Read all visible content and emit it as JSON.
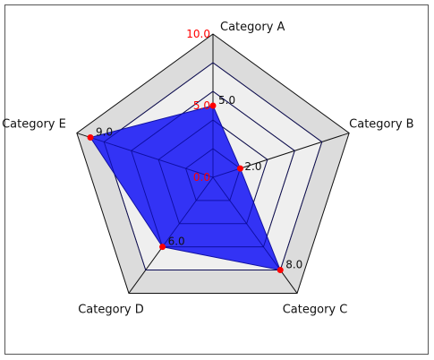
{
  "chart_data": {
    "type": "radar",
    "categories": [
      "Category A",
      "Category B",
      "Category C",
      "Category D",
      "Category E"
    ],
    "series": [
      {
        "values": [
          5.0,
          2.0,
          8.0,
          6.0,
          9.0
        ]
      }
    ],
    "value_labels": [
      "5.0",
      "2.0",
      "8.0",
      "6.0",
      "9.0"
    ],
    "rlim": [
      0,
      10
    ],
    "radial_ticks": [
      {
        "value": 0,
        "label": "0.0"
      },
      {
        "value": 5,
        "label": "5.0"
      },
      {
        "value": 10,
        "label": "10.0"
      }
    ],
    "grid": true,
    "colors": {
      "series_fill": "#1e1ef5",
      "series_line": "#1010a0",
      "point": "#ff0000",
      "band_dark": "#dcdcdc",
      "band_light": "#efefef",
      "tick_label": "#ff0000",
      "grid_line": "#111111"
    }
  }
}
